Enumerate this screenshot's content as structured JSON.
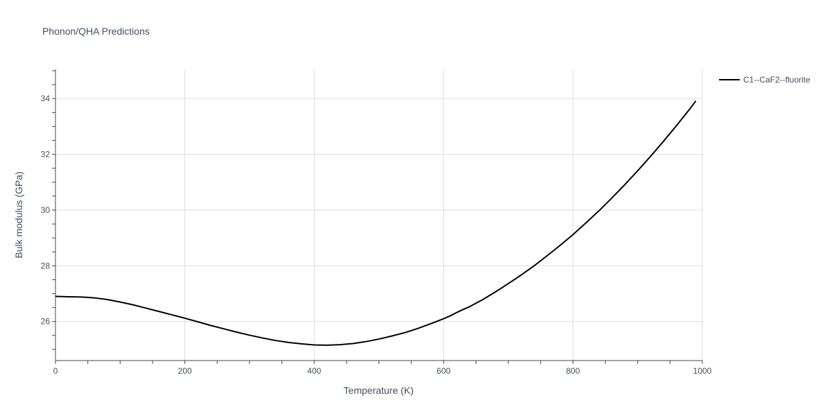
{
  "chart_data": {
    "type": "line",
    "title": "Phonon/QHA Predictions",
    "xlabel": "Temperature (K)",
    "ylabel": "Bulk modulus (GPa)",
    "xlim": [
      0,
      1000
    ],
    "ylim": [
      24.6,
      35.05
    ],
    "x_ticks": [
      0,
      200,
      400,
      600,
      800,
      1000
    ],
    "y_ticks": [
      26,
      28,
      30,
      32,
      34
    ],
    "grid": true,
    "legend_position": "top-right, outside plot",
    "series": [
      {
        "name": "C1--CaF2--fluorite",
        "color": "#000000",
        "x": [
          0,
          20,
          40,
          60,
          80,
          100,
          120,
          140,
          160,
          180,
          200,
          220,
          240,
          260,
          280,
          300,
          320,
          340,
          360,
          380,
          400,
          420,
          440,
          460,
          480,
          500,
          520,
          540,
          560,
          580,
          600,
          610,
          620,
          630,
          640,
          660,
          680,
          700,
          720,
          740,
          760,
          780,
          800,
          820,
          840,
          860,
          880,
          900,
          920,
          940,
          960,
          980,
          990
        ],
        "y": [
          26.9,
          26.89,
          26.88,
          26.85,
          26.79,
          26.7,
          26.6,
          26.48,
          26.36,
          26.24,
          26.12,
          25.99,
          25.86,
          25.74,
          25.62,
          25.51,
          25.41,
          25.32,
          25.25,
          25.2,
          25.16,
          25.15,
          25.17,
          25.21,
          25.28,
          25.37,
          25.48,
          25.6,
          25.75,
          25.92,
          26.1,
          26.2,
          26.32,
          26.43,
          26.53,
          26.78,
          27.06,
          27.36,
          27.67,
          28.0,
          28.36,
          28.73,
          29.12,
          29.54,
          29.97,
          30.43,
          30.91,
          31.41,
          31.93,
          32.47,
          33.03,
          33.61,
          33.92
        ]
      }
    ]
  }
}
